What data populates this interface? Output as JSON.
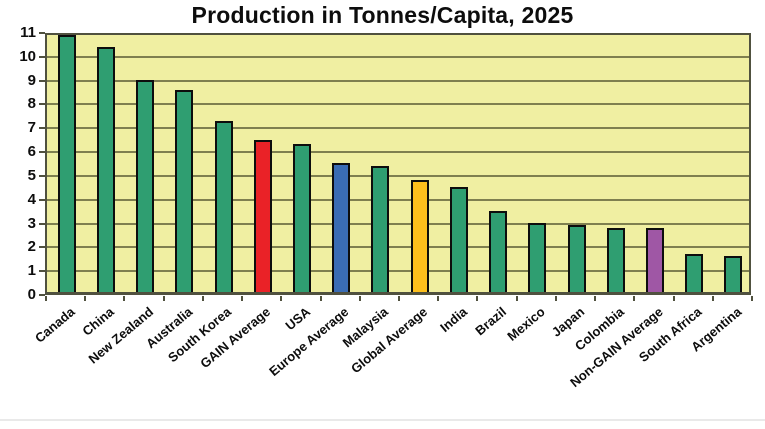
{
  "page": {
    "bottom_rule_color": "#e9e9e9"
  },
  "chart_data": {
    "type": "bar",
    "title": "Production in Tonnes/Capita, 2025",
    "categories": [
      "Canada",
      "China",
      "New Zealand",
      "Australia",
      "South Korea",
      "GAIN Average",
      "USA",
      "Europe Average",
      "Malaysia",
      "Global Average",
      "India",
      "Brazil",
      "Mexico",
      "Japan",
      "Colombia",
      "Non-GAIN Average",
      "South Africa",
      "Argentina"
    ],
    "values": [
      10.8,
      10.3,
      8.9,
      8.5,
      7.2,
      6.4,
      6.2,
      5.4,
      5.3,
      4.7,
      4.4,
      3.4,
      2.9,
      2.8,
      2.7,
      2.7,
      1.6,
      1.5
    ],
    "bar_colors": [
      "#2f9e71",
      "#2f9e71",
      "#2f9e71",
      "#2f9e71",
      "#2f9e71",
      "#ea2227",
      "#2f9e71",
      "#3a6cb4",
      "#2f9e71",
      "#fdbf1c",
      "#2f9e71",
      "#2f9e71",
      "#2f9e71",
      "#2f9e71",
      "#2f9e71",
      "#9f57a5",
      "#2f9e71",
      "#2f9e71"
    ],
    "yticks": [
      "0",
      "1",
      "2",
      "3",
      "4",
      "5",
      "6",
      "7",
      "8",
      "9",
      "10",
      "11"
    ],
    "ylim": [
      0,
      11
    ],
    "xlabel": "",
    "ylabel": "",
    "grid": "on",
    "legend": "none",
    "plot_bg_color": "#f0efa2",
    "grid_color": "#7f7f4f",
    "axis_border_color": "#50513f",
    "bar_border_color": "#0d0d0d",
    "label_rotation_deg": -40
  }
}
